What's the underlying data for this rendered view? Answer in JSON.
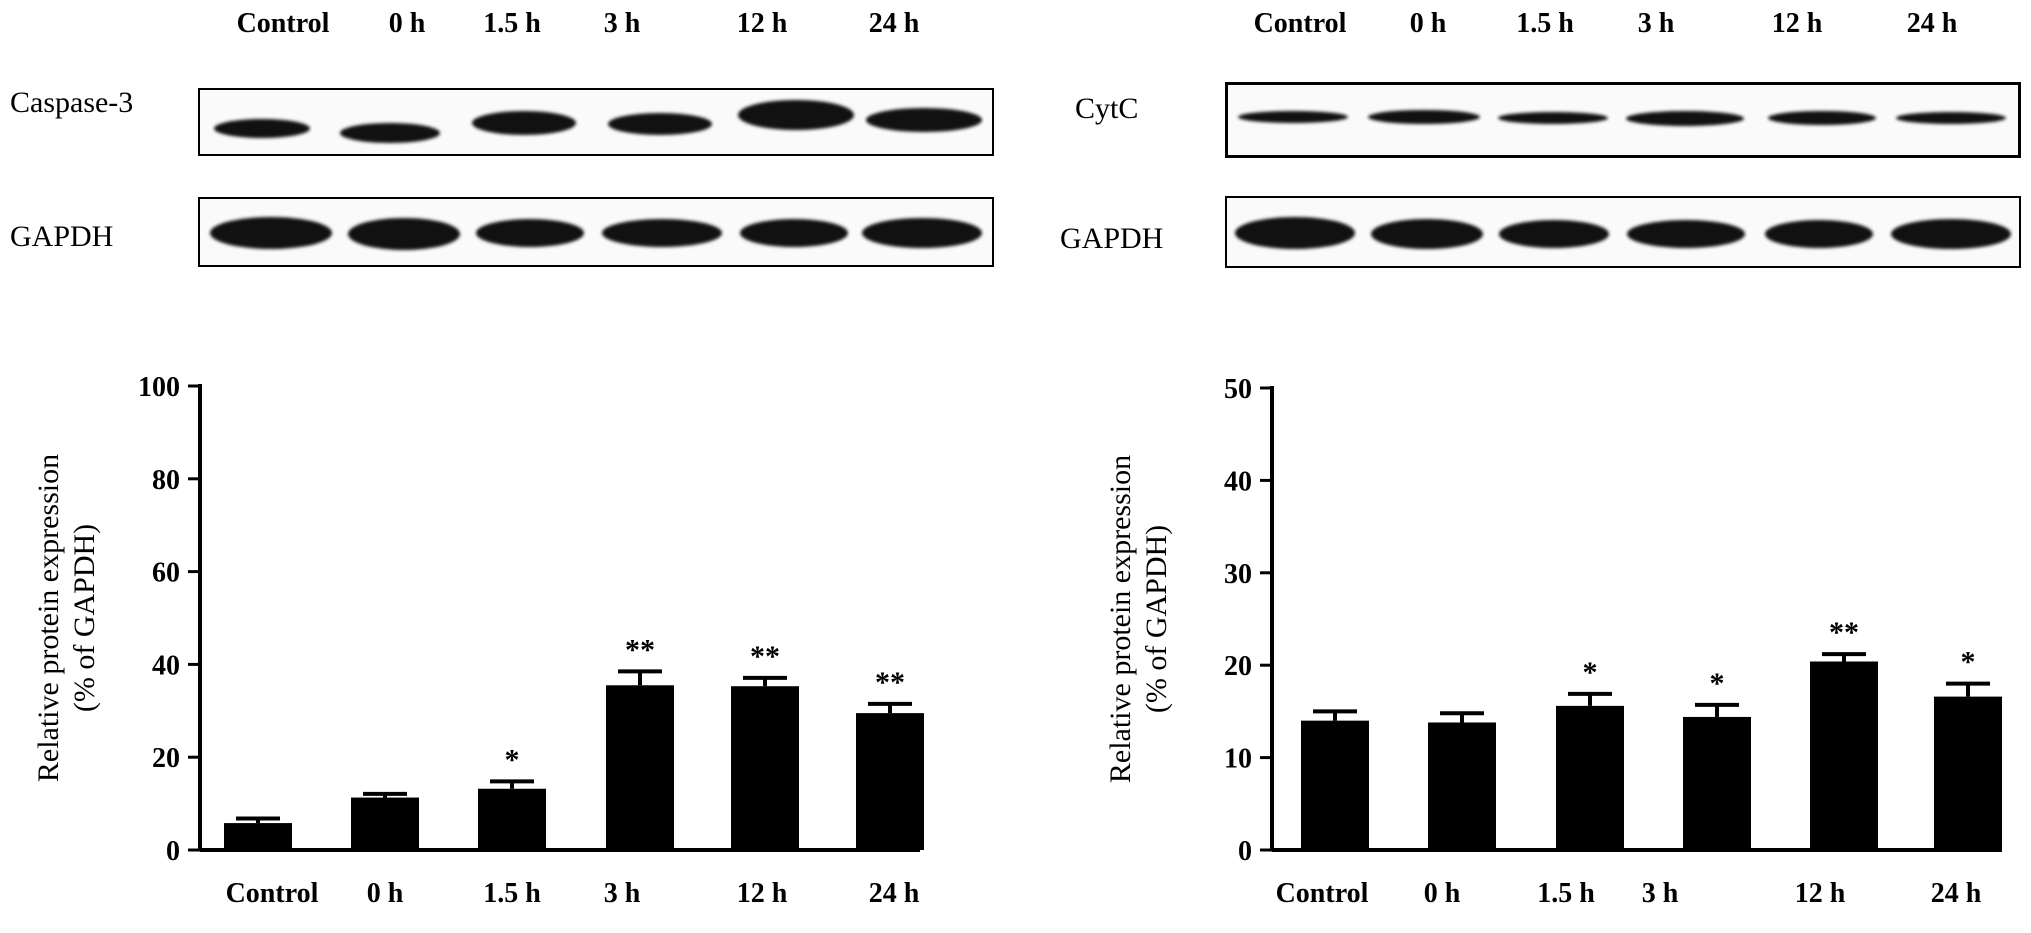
{
  "panels": [
    {
      "id": "caspase",
      "blot": {
        "lanes": [
          "Control",
          "0 h",
          "1.5 h",
          "3 h",
          "12 h",
          "24 h"
        ],
        "target_label": "Caspase-3",
        "loading_label": "GAPDH"
      },
      "chart_data": {
        "type": "bar",
        "title": "",
        "xlabel": "",
        "ylabel": "Relative protein expression",
        "ylabel_line2": "(% of GAPDH)",
        "categories": [
          "Control",
          "0 h",
          "1.5 h",
          "3 h",
          "12 h",
          "24 h"
        ],
        "values": [
          5.8,
          11.3,
          13.2,
          35.5,
          35.3,
          29.5
        ],
        "errors": [
          1.0,
          0.8,
          1.6,
          3.0,
          1.8,
          2.0
        ],
        "significance": [
          "",
          "",
          "*",
          "**",
          "**",
          "**"
        ],
        "ylim": [
          0,
          100
        ],
        "yticks": [
          0,
          20,
          40,
          60,
          80,
          100
        ],
        "grid": false,
        "bar_color": "#000000"
      }
    },
    {
      "id": "cytc",
      "blot": {
        "lanes": [
          "Control",
          "0 h",
          "1.5 h",
          "3 h",
          "12 h",
          "24 h"
        ],
        "target_label": "CytC",
        "loading_label": "GAPDH"
      },
      "chart_data": {
        "type": "bar",
        "title": "",
        "xlabel": "",
        "ylabel": "Relative protein expression",
        "ylabel_line2": "(% of GAPDH)",
        "categories": [
          "Control",
          "0 h",
          "1.5 h",
          "3 h",
          "12 h",
          "24 h"
        ],
        "values": [
          14.0,
          13.8,
          15.6,
          14.4,
          20.4,
          16.6
        ],
        "errors": [
          1.0,
          1.0,
          1.3,
          1.3,
          0.8,
          1.4
        ],
        "significance": [
          "",
          "",
          "*",
          "*",
          "**",
          "*"
        ],
        "ylim": [
          0,
          50
        ],
        "yticks": [
          0,
          10,
          20,
          30,
          40,
          50
        ],
        "grid": false,
        "bar_color": "#000000"
      }
    }
  ]
}
